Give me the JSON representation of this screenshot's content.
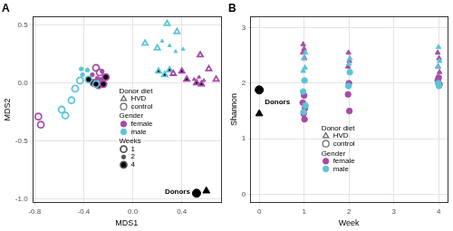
{
  "chart_data": [
    {
      "type": "scatter",
      "title": "A",
      "x_label": "MDS1",
      "y_label": "MDS2",
      "xlim": [
        -0.82,
        0.72
      ],
      "ylim": [
        -1.03,
        0.57
      ],
      "xticks": [
        {
          "value": -0.8,
          "label": "-0.8"
        },
        {
          "value": -0.4,
          "label": "-0.4"
        },
        {
          "value": 0,
          "label": "0.0"
        },
        {
          "value": 0.4,
          "label": "0.4"
        }
      ],
      "yticks": [
        {
          "value": -1,
          "label": "-1.0"
        },
        {
          "value": -0.5,
          "label": "-0.5"
        },
        {
          "value": 0,
          "label": "0.0"
        },
        {
          "value": 0.5,
          "label": "0.5"
        }
      ],
      "grid": true,
      "legend_groups": [
        {
          "title": "Donor diet",
          "items": [
            {
              "name": "HVD",
              "marker": "triangle"
            },
            {
              "name": "control",
              "marker": "circle"
            }
          ]
        },
        {
          "title": "Gender",
          "items": [
            {
              "name": "female",
              "color": "#a84aa8"
            },
            {
              "name": "male",
              "color": "#5bc4d6"
            }
          ]
        },
        {
          "title": "Weeks",
          "items": [
            {
              "name": 1,
              "marker": "open"
            },
            {
              "name": 2,
              "marker": "small"
            },
            {
              "name": 4,
              "marker": "dot"
            }
          ]
        }
      ],
      "points": [
        {
          "x": -0.77,
          "y": -0.29,
          "diet": "control",
          "gender": "female",
          "week": 1
        },
        {
          "x": -0.75,
          "y": -0.36,
          "diet": "control",
          "gender": "female",
          "week": 1
        },
        {
          "x": -0.3,
          "y": 0.13,
          "diet": "control",
          "gender": "female",
          "week": 1
        },
        {
          "x": -0.27,
          "y": 0.09,
          "diet": "control",
          "gender": "female",
          "week": 1
        },
        {
          "x": -0.33,
          "y": 0.07,
          "diet": "control",
          "gender": "female",
          "week": 2
        },
        {
          "x": -0.29,
          "y": 0.04,
          "diet": "control",
          "gender": "female",
          "week": 2
        },
        {
          "x": -0.25,
          "y": 0.1,
          "diet": "control",
          "gender": "female",
          "week": 2
        },
        {
          "x": -0.26,
          "y": 0.03,
          "diet": "control",
          "gender": "female",
          "week": 2
        },
        {
          "x": -0.32,
          "y": 0.0,
          "diet": "control",
          "gender": "female",
          "week": 4
        },
        {
          "x": -0.28,
          "y": -0.02,
          "diet": "control",
          "gender": "female",
          "week": 4
        },
        {
          "x": -0.24,
          "y": -0.01,
          "diet": "control",
          "gender": "female",
          "week": 4
        },
        {
          "x": -0.22,
          "y": 0.05,
          "diet": "control",
          "gender": "female",
          "week": 4
        },
        {
          "x": -0.58,
          "y": -0.23,
          "diet": "control",
          "gender": "male",
          "week": 1
        },
        {
          "x": -0.55,
          "y": -0.28,
          "diet": "control",
          "gender": "male",
          "week": 1
        },
        {
          "x": -0.5,
          "y": -0.15,
          "diet": "control",
          "gender": "male",
          "week": 1
        },
        {
          "x": -0.47,
          "y": -0.05,
          "diet": "control",
          "gender": "male",
          "week": 1
        },
        {
          "x": -0.43,
          "y": 0.02,
          "diet": "control",
          "gender": "male",
          "week": 1
        },
        {
          "x": -0.42,
          "y": 0.12,
          "diet": "control",
          "gender": "male",
          "week": 2
        },
        {
          "x": -0.41,
          "y": 0.07,
          "diet": "control",
          "gender": "male",
          "week": 2
        },
        {
          "x": -0.37,
          "y": 0.11,
          "diet": "control",
          "gender": "male",
          "week": 2
        },
        {
          "x": -0.36,
          "y": 0.03,
          "diet": "control",
          "gender": "male",
          "week": 4
        },
        {
          "x": -0.3,
          "y": -0.01,
          "diet": "control",
          "gender": "male",
          "week": 4
        },
        {
          "x": 0.1,
          "y": 0.34,
          "diet": "HVD",
          "gender": "male",
          "week": 1
        },
        {
          "x": 0.2,
          "y": 0.3,
          "diet": "HVD",
          "gender": "male",
          "week": 1
        },
        {
          "x": 0.28,
          "y": 0.51,
          "diet": "HVD",
          "gender": "male",
          "week": 1
        },
        {
          "x": 0.36,
          "y": 0.44,
          "diet": "HVD",
          "gender": "male",
          "week": 1
        },
        {
          "x": 0.24,
          "y": 0.36,
          "diet": "HVD",
          "gender": "male",
          "week": 2
        },
        {
          "x": 0.3,
          "y": 0.32,
          "diet": "HVD",
          "gender": "male",
          "week": 2
        },
        {
          "x": 0.35,
          "y": 0.27,
          "diet": "HVD",
          "gender": "male",
          "week": 2
        },
        {
          "x": 0.41,
          "y": 0.29,
          "diet": "HVD",
          "gender": "male",
          "week": 2
        },
        {
          "x": 0.21,
          "y": 0.1,
          "diet": "HVD",
          "gender": "male",
          "week": 4
        },
        {
          "x": 0.26,
          "y": 0.07,
          "diet": "HVD",
          "gender": "male",
          "week": 4
        },
        {
          "x": 0.3,
          "y": 0.11,
          "diet": "HVD",
          "gender": "male",
          "week": 4
        },
        {
          "x": 0.55,
          "y": 0.24,
          "diet": "HVD",
          "gender": "female",
          "week": 1
        },
        {
          "x": 0.62,
          "y": 0.12,
          "diet": "HVD",
          "gender": "female",
          "week": 1
        },
        {
          "x": 0.68,
          "y": 0.03,
          "diet": "HVD",
          "gender": "female",
          "week": 1
        },
        {
          "x": 0.33,
          "y": 0.08,
          "diet": "HVD",
          "gender": "female",
          "week": 1
        },
        {
          "x": 0.5,
          "y": 0.03,
          "diet": "HVD",
          "gender": "female",
          "week": 2
        },
        {
          "x": 0.54,
          "y": 0.05,
          "diet": "HVD",
          "gender": "female",
          "week": 2
        },
        {
          "x": 0.58,
          "y": 0.02,
          "diet": "HVD",
          "gender": "female",
          "week": 2
        },
        {
          "x": 0.4,
          "y": 0.1,
          "diet": "HVD",
          "gender": "female",
          "week": 4
        },
        {
          "x": 0.44,
          "y": 0.03,
          "diet": "HVD",
          "gender": "female",
          "week": 4
        },
        {
          "x": 0.52,
          "y": 0.0,
          "diet": "HVD",
          "gender": "female",
          "week": 4
        },
        {
          "x": 0.56,
          "y": -0.01,
          "diet": "HVD",
          "gender": "female",
          "week": 4
        }
      ],
      "donors": {
        "name": "Donors",
        "color": "#000000",
        "points": [
          {
            "x": 0.52,
            "y": -0.95,
            "diet": "control"
          },
          {
            "x": 0.6,
            "y": -0.93,
            "diet": "HVD"
          }
        ]
      }
    },
    {
      "type": "scatter",
      "title": "B",
      "x_label": "Week",
      "y_label": "Shannon",
      "xlim": [
        -0.2,
        4.2
      ],
      "ylim": [
        -0.15,
        3.2
      ],
      "xticks": [
        0,
        1,
        2,
        3,
        4
      ],
      "yticks": [
        0,
        1,
        2,
        3
      ],
      "grid": true,
      "legend_groups": [
        {
          "title": "Donor diet",
          "items": [
            {
              "name": "HVD",
              "marker": "triangle"
            },
            {
              "name": "control",
              "marker": "circle"
            }
          ]
        },
        {
          "title": "Gender",
          "items": [
            {
              "name": "female",
              "color": "#a84aa8"
            },
            {
              "name": "male",
              "color": "#5bc4d6"
            }
          ]
        }
      ],
      "points": [
        {
          "x": 0.98,
          "y": 2.7,
          "diet": "HVD",
          "gender": "female"
        },
        {
          "x": 1.0,
          "y": 2.62,
          "diet": "HVD",
          "gender": "female"
        },
        {
          "x": 0.97,
          "y": 2.55,
          "diet": "HVD",
          "gender": "female"
        },
        {
          "x": 1.01,
          "y": 2.45,
          "diet": "HVD",
          "gender": "female"
        },
        {
          "x": 1.03,
          "y": 2.55,
          "diet": "HVD",
          "gender": "male"
        },
        {
          "x": 0.99,
          "y": 2.45,
          "diet": "HVD",
          "gender": "male"
        },
        {
          "x": 1.02,
          "y": 2.28,
          "diet": "HVD",
          "gender": "male"
        },
        {
          "x": 0.98,
          "y": 2.22,
          "diet": "HVD",
          "gender": "male"
        },
        {
          "x": 1.0,
          "y": 1.78,
          "diet": "control",
          "gender": "female"
        },
        {
          "x": 0.97,
          "y": 1.65,
          "diet": "control",
          "gender": "female"
        },
        {
          "x": 1.02,
          "y": 1.55,
          "diet": "control",
          "gender": "female"
        },
        {
          "x": 0.99,
          "y": 1.45,
          "diet": "control",
          "gender": "female"
        },
        {
          "x": 1.01,
          "y": 1.35,
          "diet": "control",
          "gender": "female"
        },
        {
          "x": 1.01,
          "y": 2.05,
          "diet": "control",
          "gender": "male"
        },
        {
          "x": 0.98,
          "y": 1.85,
          "diet": "control",
          "gender": "male"
        },
        {
          "x": 1.03,
          "y": 1.6,
          "diet": "control",
          "gender": "male"
        },
        {
          "x": 0.99,
          "y": 1.48,
          "diet": "control",
          "gender": "male"
        },
        {
          "x": 1.99,
          "y": 2.55,
          "diet": "HVD",
          "gender": "female"
        },
        {
          "x": 2.01,
          "y": 2.4,
          "diet": "HVD",
          "gender": "female"
        },
        {
          "x": 1.98,
          "y": 2.3,
          "diet": "HVD",
          "gender": "female"
        },
        {
          "x": 2.02,
          "y": 2.45,
          "diet": "HVD",
          "gender": "male"
        },
        {
          "x": 2.0,
          "y": 2.35,
          "diet": "HVD",
          "gender": "male"
        },
        {
          "x": 2.0,
          "y": 2.0,
          "diet": "control",
          "gender": "female"
        },
        {
          "x": 1.98,
          "y": 1.8,
          "diet": "control",
          "gender": "female"
        },
        {
          "x": 2.01,
          "y": 1.5,
          "diet": "control",
          "gender": "female"
        },
        {
          "x": 2.02,
          "y": 2.2,
          "diet": "control",
          "gender": "male"
        },
        {
          "x": 1.99,
          "y": 1.95,
          "diet": "control",
          "gender": "male"
        },
        {
          "x": 3.98,
          "y": 2.55,
          "diet": "HVD",
          "gender": "female"
        },
        {
          "x": 4.01,
          "y": 2.45,
          "diet": "HVD",
          "gender": "female"
        },
        {
          "x": 3.99,
          "y": 2.3,
          "diet": "HVD",
          "gender": "female"
        },
        {
          "x": 4.02,
          "y": 2.2,
          "diet": "HVD",
          "gender": "female"
        },
        {
          "x": 4.0,
          "y": 2.65,
          "diet": "HVD",
          "gender": "male"
        },
        {
          "x": 4.02,
          "y": 2.4,
          "diet": "HVD",
          "gender": "male"
        },
        {
          "x": 3.98,
          "y": 2.3,
          "diet": "HVD",
          "gender": "male"
        },
        {
          "x": 4.0,
          "y": 2.1,
          "diet": "control",
          "gender": "female"
        },
        {
          "x": 3.98,
          "y": 2.05,
          "diet": "control",
          "gender": "female"
        },
        {
          "x": 4.02,
          "y": 1.98,
          "diet": "control",
          "gender": "female"
        },
        {
          "x": 3.99,
          "y": 2.0,
          "diet": "control",
          "gender": "male"
        },
        {
          "x": 4.01,
          "y": 1.95,
          "diet": "control",
          "gender": "male"
        }
      ],
      "donors": {
        "name": "Donors",
        "color": "#000000",
        "points": [
          {
            "x": 0,
            "y": 1.88,
            "diet": "control"
          },
          {
            "x": 0,
            "y": 1.45,
            "diet": "HVD"
          }
        ]
      }
    }
  ]
}
